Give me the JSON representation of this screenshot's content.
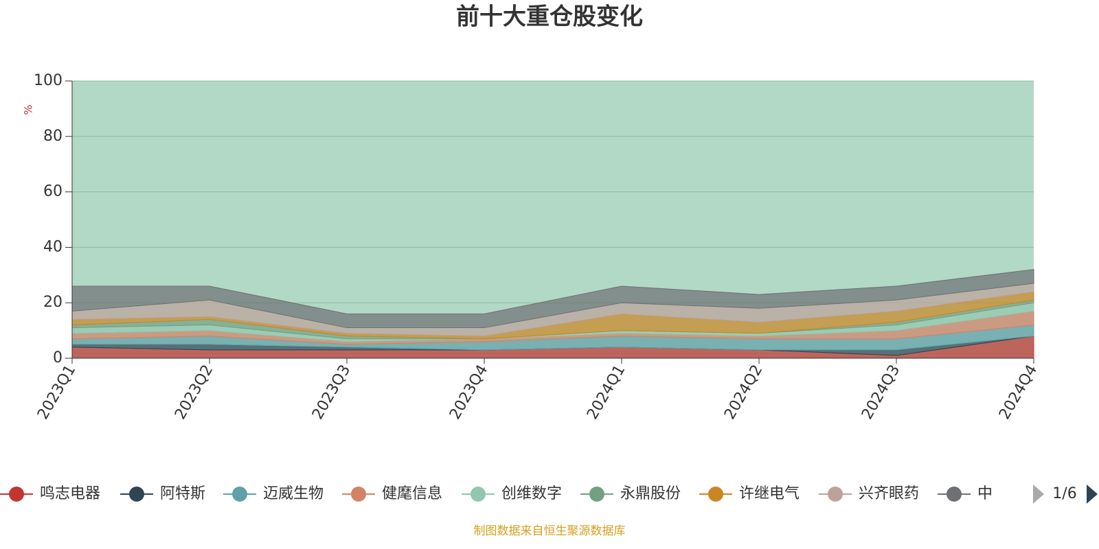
{
  "chart_data": {
    "type": "stacked-area",
    "title": "前十大重仓股变化",
    "y_label": "%",
    "categories": [
      "2023Q1",
      "2023Q2",
      "2023Q3",
      "2023Q4",
      "2024Q1",
      "2024Q2",
      "2024Q3",
      "2024Q4"
    ],
    "ylim": [
      0,
      100
    ],
    "yticks": [
      0,
      20,
      40,
      60,
      80,
      100
    ],
    "grid": true,
    "background": "#b2d8c6",
    "series": [
      {
        "name": "鸣志电器",
        "color": "#c23531",
        "values": [
          4,
          3,
          3,
          3,
          4,
          3,
          1,
          8
        ]
      },
      {
        "name": "阿特斯",
        "color": "#2f4554",
        "values": [
          1,
          2,
          1,
          0,
          0,
          0,
          2,
          0
        ]
      },
      {
        "name": "迈威生物",
        "color": "#61a0a8",
        "values": [
          2,
          3,
          1,
          3,
          4,
          4,
          4,
          4
        ]
      },
      {
        "name": "健麾信息",
        "color": "#d48265",
        "values": [
          2,
          2,
          1,
          1,
          1,
          1,
          3,
          5
        ]
      },
      {
        "name": "创维数字",
        "color": "#91c7ae",
        "values": [
          2,
          2,
          1,
          0,
          1,
          1,
          2,
          3
        ]
      },
      {
        "name": "永鼎股份",
        "color": "#749f83",
        "values": [
          1,
          2,
          1,
          0,
          0,
          0,
          1,
          1
        ]
      },
      {
        "name": "许继电气",
        "color": "#ca8622",
        "values": [
          2,
          1,
          1,
          1,
          6,
          4,
          4,
          3
        ]
      },
      {
        "name": "兴齐眼药",
        "color": "#bda29a",
        "values": [
          3,
          6,
          2,
          3,
          4,
          5,
          4,
          3
        ]
      },
      {
        "name": "中",
        "color": "#6e7074",
        "values": [
          9,
          5,
          5,
          5,
          6,
          5,
          5,
          5
        ]
      }
    ],
    "legend_page": "1/6",
    "footer": "制图数据来自恒生聚源数据库"
  }
}
